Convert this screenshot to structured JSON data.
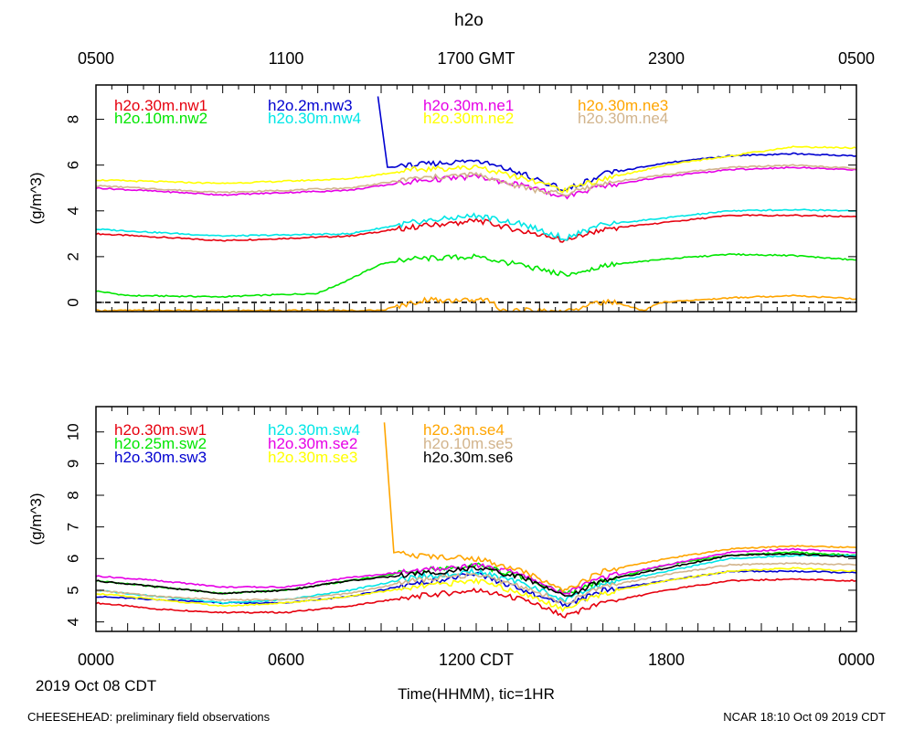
{
  "title": "h2o",
  "footer_left": "CHEESEHEAD: preliminary field observations",
  "footer_right": "NCAR 18:10 Oct 09 2019 CDT",
  "date_label": "2019 Oct 08 CDT",
  "xlabel": "Time(HHMM), tic=1HR",
  "top_axis_labels": [
    "0500",
    "1100",
    "1700 GMT",
    "2300",
    "0500"
  ],
  "bottom_axis_labels": [
    "0000",
    "0600",
    "1200 CDT",
    "1800",
    "0000"
  ],
  "chart_data": [
    {
      "type": "line",
      "panel": "top",
      "ylabel": "(g/m^3)",
      "xlim": [
        0,
        24
      ],
      "ylim": [
        -0.4,
        9.5
      ],
      "yticks": [
        0,
        2,
        4,
        6,
        8
      ],
      "zero_line": true,
      "series": [
        {
          "name": "h2o.30m.nw1",
          "color": "#e6000e",
          "x": [
            0,
            4,
            8,
            10,
            11.5,
            12,
            13.5,
            14.8,
            16,
            18,
            20,
            22,
            24
          ],
          "y": [
            3.0,
            2.7,
            2.9,
            3.3,
            3.5,
            3.6,
            3.1,
            2.7,
            3.2,
            3.5,
            3.8,
            3.8,
            3.75
          ]
        },
        {
          "name": "h2o.10m.nw2",
          "color": "#00e600",
          "x": [
            0,
            1,
            4,
            7,
            8,
            9,
            10,
            12,
            13.5,
            14.8,
            16,
            18,
            20,
            22,
            24
          ],
          "y": [
            0.5,
            0.3,
            0.25,
            0.4,
            1.0,
            1.7,
            1.9,
            2.0,
            1.6,
            1.2,
            1.6,
            1.9,
            2.1,
            2.05,
            1.85
          ]
        },
        {
          "name": "h2o.2m.nw3",
          "color": "#0000d0",
          "x": [
            8.9,
            9.2,
            10,
            12,
            13.5,
            14.8,
            16,
            18,
            20,
            22,
            24
          ],
          "y": [
            9.0,
            5.9,
            6.0,
            6.2,
            5.6,
            4.9,
            5.6,
            6.1,
            6.4,
            6.5,
            6.4
          ]
        },
        {
          "name": "h2o.30m.nw4",
          "color": "#00e6e6",
          "x": [
            0,
            4,
            8,
            10,
            12,
            13.5,
            14.8,
            16,
            18,
            20,
            22,
            24
          ],
          "y": [
            3.2,
            2.9,
            3.0,
            3.5,
            3.8,
            3.4,
            2.8,
            3.4,
            3.7,
            4.0,
            4.05,
            4.0
          ]
        },
        {
          "name": "h2o.30m.ne1",
          "color": "#e600e6",
          "x": [
            0,
            4,
            8,
            10,
            12,
            13.5,
            14.8,
            16,
            18,
            20,
            22,
            24
          ],
          "y": [
            5.0,
            4.7,
            4.9,
            5.3,
            5.5,
            5.1,
            4.6,
            5.1,
            5.5,
            5.8,
            5.9,
            5.8
          ]
        },
        {
          "name": "h2o.30m.ne2",
          "color": "#ffff00",
          "x": [
            0,
            4,
            8,
            10,
            12,
            13.5,
            14.8,
            16,
            18,
            20,
            22,
            24
          ],
          "y": [
            5.35,
            5.2,
            5.4,
            5.8,
            5.9,
            5.4,
            4.9,
            5.4,
            6.0,
            6.4,
            6.8,
            6.75
          ]
        },
        {
          "name": "h2o.30m.ne3",
          "color": "#ffa500",
          "x": [
            0,
            8.8,
            9.0,
            10.3,
            12.5,
            12.7,
            15.3,
            15.6,
            16.3,
            17.3,
            17.8,
            20,
            22,
            24
          ],
          "y": [
            -0.35,
            -0.35,
            -0.35,
            0.1,
            0.1,
            -0.35,
            -0.35,
            0.0,
            0.0,
            -0.35,
            0.0,
            0.2,
            0.3,
            0.15
          ]
        },
        {
          "name": "h2o.30m.ne4",
          "color": "#d2b48c",
          "x": [
            0,
            4,
            8,
            10,
            12,
            13.5,
            14.8,
            16,
            18,
            20,
            22,
            24
          ],
          "y": [
            5.1,
            4.8,
            5.0,
            5.4,
            5.6,
            5.0,
            4.7,
            5.2,
            5.6,
            5.9,
            6.0,
            5.85
          ]
        }
      ]
    },
    {
      "type": "line",
      "panel": "bottom",
      "ylabel": "(g/m^3)",
      "xlim": [
        0,
        24
      ],
      "ylim": [
        3.7,
        10.8
      ],
      "yticks": [
        4,
        5,
        6,
        7,
        8,
        9,
        10
      ],
      "series": [
        {
          "name": "h2o.30m.sw1",
          "color": "#e6000e",
          "x": [
            0,
            2,
            4,
            6,
            8,
            10,
            12,
            13.5,
            14.8,
            16,
            18,
            20,
            22,
            24
          ],
          "y": [
            4.6,
            4.4,
            4.3,
            4.3,
            4.5,
            4.8,
            5.0,
            4.7,
            4.2,
            4.6,
            5.0,
            5.3,
            5.35,
            5.3
          ]
        },
        {
          "name": "h2o.25m.sw2",
          "color": "#00e600",
          "x": [
            0,
            2,
            4,
            6,
            8,
            10,
            12,
            13.5,
            14.8,
            16,
            18,
            20,
            22,
            24
          ],
          "y": [
            5.3,
            5.1,
            4.9,
            5.0,
            5.3,
            5.6,
            5.8,
            5.4,
            4.9,
            5.3,
            5.8,
            6.1,
            6.2,
            6.1
          ]
        },
        {
          "name": "h2o.30m.sw3",
          "color": "#0000d0",
          "x": [
            0,
            2,
            4,
            6,
            8,
            10,
            12,
            13.5,
            14.8,
            16,
            18,
            20,
            22,
            24
          ],
          "y": [
            4.8,
            4.7,
            4.6,
            4.6,
            4.8,
            5.2,
            5.5,
            5.0,
            4.5,
            5.0,
            5.3,
            5.6,
            5.6,
            5.55
          ]
        },
        {
          "name": "h2o.30m.sw4",
          "color": "#00e6e6",
          "x": [
            0,
            2,
            4,
            6,
            8,
            10,
            12,
            13.5,
            14.8,
            16,
            18,
            20,
            22,
            24
          ],
          "y": [
            5.0,
            4.8,
            4.6,
            4.7,
            5.0,
            5.4,
            5.6,
            5.2,
            4.7,
            5.2,
            5.6,
            6.0,
            6.1,
            6.1
          ]
        },
        {
          "name": "h2o.30m.se2",
          "color": "#e600e6",
          "x": [
            0,
            2,
            4,
            6,
            8,
            10,
            12,
            13.5,
            14.8,
            16,
            18,
            20,
            22,
            24
          ],
          "y": [
            5.45,
            5.3,
            5.1,
            5.1,
            5.4,
            5.6,
            5.8,
            5.5,
            4.9,
            5.4,
            5.8,
            6.2,
            6.3,
            6.2
          ]
        },
        {
          "name": "h2o.30m.se3",
          "color": "#ffff00",
          "x": [
            0,
            2,
            4,
            6,
            8,
            10,
            12,
            13.5,
            14.8,
            16,
            18,
            20,
            22,
            24
          ],
          "y": [
            4.9,
            4.7,
            4.5,
            4.6,
            4.8,
            5.1,
            5.3,
            4.9,
            4.4,
            4.9,
            5.3,
            5.6,
            5.7,
            5.6
          ]
        },
        {
          "name": "h2o.3m.se4",
          "color": "#ffa500",
          "x": [
            9.1,
            9.4,
            10,
            12,
            13.5,
            14.8,
            16,
            18,
            20,
            22,
            24
          ],
          "y": [
            10.3,
            6.2,
            6.1,
            6.0,
            5.6,
            5.0,
            5.6,
            6.0,
            6.3,
            6.4,
            6.35
          ]
        },
        {
          "name": "h2o.10m.se5",
          "color": "#d2b48c",
          "x": [
            0,
            2,
            4,
            6,
            8,
            10,
            12,
            13.5,
            14.8,
            16,
            18,
            20,
            22,
            24
          ],
          "y": [
            5.0,
            4.8,
            4.7,
            4.7,
            4.9,
            5.3,
            5.5,
            5.1,
            4.6,
            5.1,
            5.5,
            5.8,
            5.85,
            5.8
          ]
        },
        {
          "name": "h2o.30m.se6",
          "color": "#000000",
          "x": [
            0,
            2,
            4,
            6,
            8,
            10,
            12,
            13.5,
            14.8,
            16,
            18,
            20,
            22,
            24
          ],
          "y": [
            5.3,
            5.1,
            4.9,
            5.0,
            5.3,
            5.5,
            5.7,
            5.4,
            4.8,
            5.3,
            5.7,
            6.1,
            6.15,
            6.05
          ]
        }
      ]
    }
  ]
}
